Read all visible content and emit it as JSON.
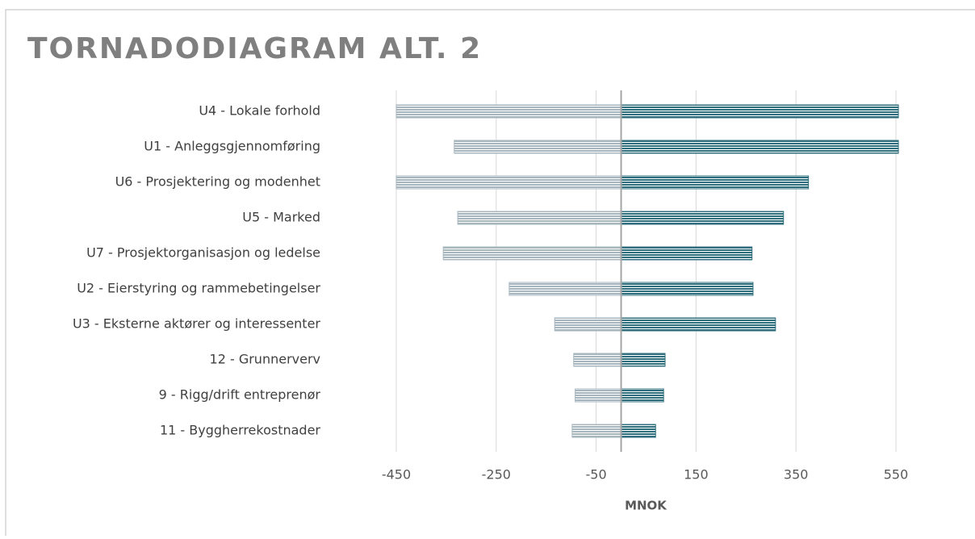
{
  "chart_data": {
    "type": "tornado",
    "title": "TORNADODIAGRAM ALT. 2",
    "x_label": "MNOK",
    "categories": [
      "U4 - Lokale forhold",
      "U1 - Anleggsgjennomføring",
      "U6 - Prosjektering og modenhet",
      "U5 - Marked",
      "U7 - Prosjektorganisasjon og ledelse",
      "U2 - Eierstyring og rammebetingelser",
      "U3 - Eksterne aktører og interessenter",
      "12 - Grunnerverv",
      "9 - Rigg/drift entreprenør",
      "11 - Byggherrekostnader"
    ],
    "series": [
      {
        "color": "#a7b6be",
        "values": [
          -450,
          -334,
          -450,
          -327,
          -356,
          -224,
          -133,
          -95,
          -92,
          -98
        ]
      },
      {
        "color": "#2f6f7d",
        "values": [
          555,
          555,
          375,
          325,
          262,
          264,
          309,
          88,
          85,
          69
        ]
      }
    ],
    "xlim": [
      -450,
      550
    ],
    "xticks": [
      -450,
      -250,
      -50,
      150,
      350,
      550
    ],
    "grid": true
  }
}
